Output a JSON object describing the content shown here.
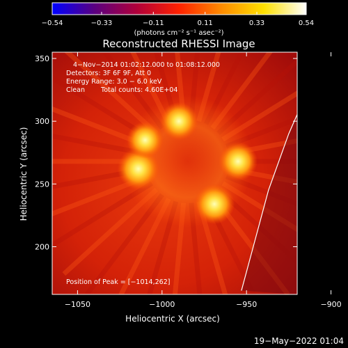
{
  "chart_data": {
    "type": "heatmap",
    "title": "Reconstructed RHESSI Image",
    "xlabel": "Heliocentric X (arcsec)",
    "ylabel": "Heliocentric Y (arcsec)",
    "xlim": [
      -1065,
      -920
    ],
    "ylim": [
      162,
      355
    ],
    "x_ticks": [
      -1050,
      -1000,
      -950,
      -900
    ],
    "x_tick_labels": [
      "−1050",
      "−1000",
      "−950",
      "−900"
    ],
    "y_ticks": [
      200,
      250,
      300,
      350
    ],
    "y_tick_labels": [
      "200",
      "250",
      "300",
      "350"
    ],
    "colorbar": {
      "min": -0.54,
      "max": 0.54,
      "ticks": [
        -0.54,
        -0.33,
        -0.11,
        0.11,
        0.33,
        0.54
      ],
      "tick_labels": [
        "−0.54",
        "−0.33",
        "−0.11",
        "0.11",
        "0.33",
        "0.54"
      ],
      "unit_label": "(photons cm⁻² s⁻¹ asec⁻²)",
      "colors": [
        "#0000ff",
        "#5a0080",
        "#b0003a",
        "#ff2200",
        "#ff8c00",
        "#ffe000",
        "#ffffff"
      ]
    },
    "annotations": [
      "4−Nov−2014 01:02:12.000 to 01:08:12.000",
      "Detectors: 3F 6F 9F, Att 0",
      "Energy Range: 3.0 − 6.0 keV",
      "Clean",
      "Total counts: 4.60E+04"
    ],
    "peak_label": "Position of Peak = [−1014,262]",
    "peak": [
      -1014,
      262
    ],
    "sources": [
      {
        "x": -1014,
        "y": 262,
        "value": 0.54
      },
      {
        "x": -969,
        "y": 234,
        "value": 0.5
      },
      {
        "x": -955,
        "y": 268,
        "value": 0.46
      },
      {
        "x": -990,
        "y": 300,
        "value": 0.44
      },
      {
        "x": -1010,
        "y": 285,
        "value": 0.4
      }
    ],
    "limb_curve": [
      [
        -953,
        165
      ],
      [
        -946,
        200
      ],
      [
        -937,
        245
      ],
      [
        -925,
        290
      ],
      [
        -912,
        330
      ],
      [
        -904,
        355
      ]
    ],
    "timestamp": "19−May−2022 01:04"
  }
}
